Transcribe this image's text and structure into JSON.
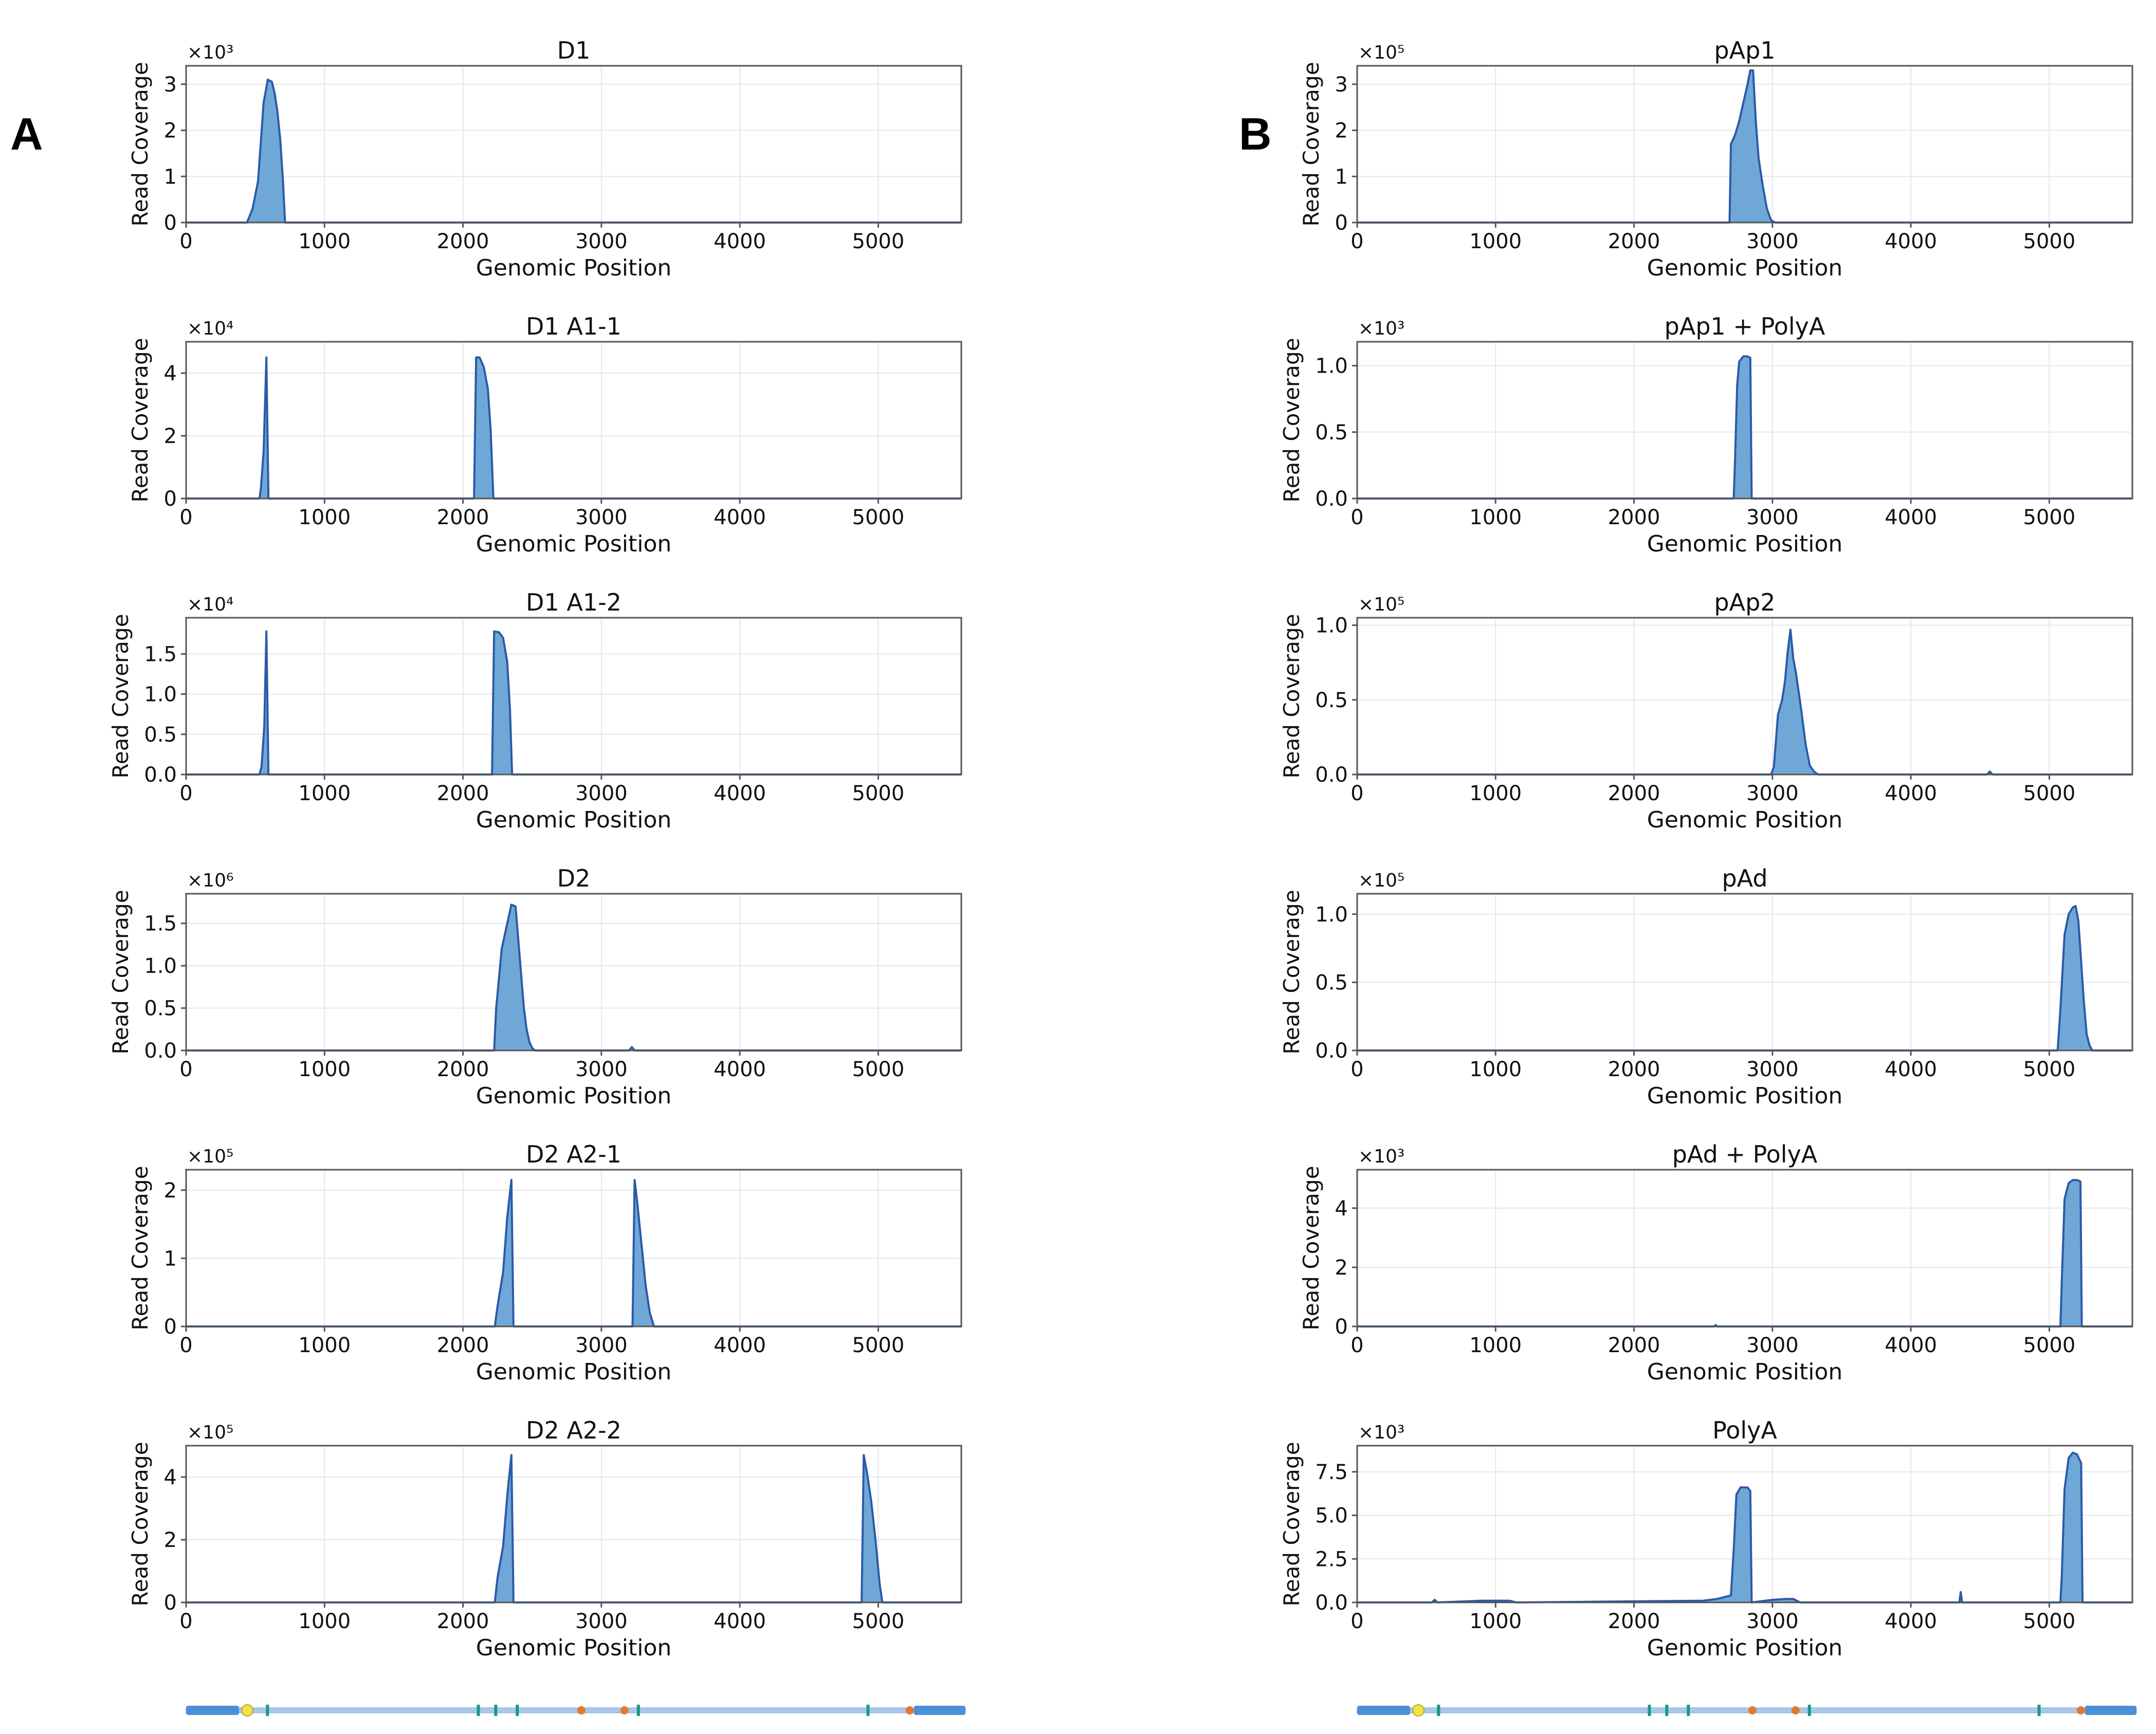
{
  "figure": {
    "panel_labels": [
      "A",
      "B"
    ],
    "colors": {
      "fill": "#6fa8d6",
      "stroke": "#2b5aa8",
      "grid": "#e6e6e6",
      "frame": "#555555"
    },
    "genome_map": {
      "x_range": [
        0,
        5600
      ],
      "yellow_markers": [
        440
      ],
      "green_ticks": [
        585,
        2100,
        2225,
        2380,
        3250,
        4900
      ],
      "orange_dots": [
        2840,
        3150,
        5200
      ],
      "colors": {
        "bar": "#4a90d9",
        "line": "#a9c7ea",
        "yellow": "#f2e24a",
        "green": "#1a9a7a",
        "orange": "#e07a2e"
      }
    }
  },
  "chart_data": [
    {
      "type": "area",
      "panel": "A",
      "title": "D1",
      "xlabel": "Genomic Position",
      "ylabel": "Read Coverage",
      "multiplier": "×10³",
      "xlim": [
        0,
        5600
      ],
      "ylim": [
        0,
        3.4
      ],
      "xticks": [
        0,
        1000,
        2000,
        3000,
        4000,
        5000
      ],
      "yticks": [
        0,
        1,
        2,
        3
      ],
      "ytick_labels": [
        "0",
        "1",
        "2",
        "3"
      ],
      "x": [
        0,
        440,
        480,
        520,
        560,
        590,
        620,
        640,
        660,
        680,
        700,
        715,
        5600
      ],
      "y": [
        0,
        0,
        0.3,
        0.9,
        2.6,
        3.1,
        3.05,
        2.8,
        2.4,
        1.8,
        0.9,
        0,
        0
      ]
    },
    {
      "type": "area",
      "panel": "A",
      "title": "D1 A1-1",
      "xlabel": "Genomic Position",
      "ylabel": "Read Coverage",
      "multiplier": "×10⁴",
      "xlim": [
        0,
        5600
      ],
      "ylim": [
        0,
        5.0
      ],
      "xticks": [
        0,
        1000,
        2000,
        3000,
        4000,
        5000
      ],
      "yticks": [
        0,
        2,
        4
      ],
      "ytick_labels": [
        "0",
        "2",
        "4"
      ],
      "x": [
        0,
        530,
        540,
        560,
        580,
        595,
        2080,
        2095,
        2120,
        2150,
        2180,
        2200,
        2220,
        5600
      ],
      "y": [
        0,
        0,
        0.3,
        1.5,
        4.5,
        0,
        0,
        4.5,
        4.5,
        4.2,
        3.5,
        2.2,
        0,
        0
      ]
    },
    {
      "type": "area",
      "panel": "A",
      "title": "D1 A1-2",
      "xlabel": "Genomic Position",
      "ylabel": "Read Coverage",
      "multiplier": "×10⁴",
      "xlim": [
        0,
        5600
      ],
      "ylim": [
        0,
        1.95
      ],
      "xticks": [
        0,
        1000,
        2000,
        3000,
        4000,
        5000
      ],
      "yticks": [
        0,
        0.5,
        1.0,
        1.5
      ],
      "ytick_labels": [
        "0.0",
        "0.5",
        "1.0",
        "1.5"
      ],
      "x": [
        0,
        530,
        545,
        565,
        580,
        595,
        2210,
        2225,
        2260,
        2290,
        2320,
        2340,
        2355,
        5600
      ],
      "y": [
        0,
        0,
        0.1,
        0.6,
        1.78,
        0,
        0,
        1.78,
        1.77,
        1.7,
        1.4,
        0.8,
        0,
        0
      ]
    },
    {
      "type": "area",
      "panel": "A",
      "title": "D2",
      "xlabel": "Genomic Position",
      "ylabel": "Read Coverage",
      "multiplier": "×10⁶",
      "xlim": [
        0,
        5600
      ],
      "ylim": [
        0,
        1.85
      ],
      "xticks": [
        0,
        1000,
        2000,
        3000,
        4000,
        5000
      ],
      "yticks": [
        0,
        0.5,
        1.0,
        1.5
      ],
      "ytick_labels": [
        "0.0",
        "0.5",
        "1.0",
        "1.5"
      ],
      "x": [
        0,
        2225,
        2240,
        2280,
        2320,
        2350,
        2380,
        2400,
        2420,
        2440,
        2460,
        2480,
        2500,
        2520,
        3200,
        3220,
        3240,
        5600
      ],
      "y": [
        0,
        0,
        0.5,
        1.2,
        1.5,
        1.72,
        1.7,
        1.3,
        0.9,
        0.5,
        0.25,
        0.1,
        0.03,
        0,
        0,
        0.04,
        0,
        0
      ]
    },
    {
      "type": "area",
      "panel": "A",
      "title": "D2 A2-1",
      "xlabel": "Genomic Position",
      "ylabel": "Read Coverage",
      "multiplier": "×10⁵",
      "xlim": [
        0,
        5600
      ],
      "ylim": [
        0,
        2.3
      ],
      "xticks": [
        0,
        1000,
        2000,
        3000,
        4000,
        5000
      ],
      "yticks": [
        0,
        1,
        2
      ],
      "ytick_labels": [
        "0",
        "1",
        "2"
      ],
      "x": [
        0,
        2230,
        2250,
        2290,
        2320,
        2350,
        2365,
        3225,
        3240,
        3260,
        3290,
        3320,
        3350,
        3380,
        5600
      ],
      "y": [
        0,
        0,
        0.3,
        0.8,
        1.6,
        2.15,
        0,
        0,
        2.15,
        1.8,
        1.2,
        0.6,
        0.2,
        0,
        0
      ]
    },
    {
      "type": "area",
      "panel": "A",
      "title": "D2 A2-2",
      "xlabel": "Genomic Position",
      "ylabel": "Read Coverage",
      "multiplier": "×10⁵",
      "xlim": [
        0,
        5600
      ],
      "ylim": [
        0,
        5.0
      ],
      "xticks": [
        0,
        1000,
        2000,
        3000,
        4000,
        5000
      ],
      "yticks": [
        0,
        2,
        4
      ],
      "ytick_labels": [
        "0",
        "2",
        "4"
      ],
      "x": [
        0,
        2230,
        2250,
        2290,
        2320,
        2350,
        2365,
        4880,
        4895,
        4920,
        4950,
        4980,
        5010,
        5030,
        5600
      ],
      "y": [
        0,
        0,
        0.8,
        1.8,
        3.4,
        4.7,
        0,
        0,
        4.7,
        4.1,
        3.2,
        2.0,
        0.6,
        0,
        0
      ]
    },
    {
      "type": "area",
      "panel": "B",
      "title": "pAp1",
      "xlabel": "Genomic Position",
      "ylabel": "Read Coverage",
      "multiplier": "×10⁵",
      "xlim": [
        0,
        5600
      ],
      "ylim": [
        0,
        3.4
      ],
      "xticks": [
        0,
        1000,
        2000,
        3000,
        4000,
        5000
      ],
      "yticks": [
        0,
        1,
        2,
        3
      ],
      "ytick_labels": [
        "0",
        "1",
        "2",
        "3"
      ],
      "x": [
        0,
        2690,
        2700,
        2730,
        2760,
        2790,
        2820,
        2840,
        2860,
        2880,
        2900,
        2930,
        2960,
        2990,
        3020,
        5600
      ],
      "y": [
        0,
        0,
        1.7,
        1.9,
        2.2,
        2.6,
        3.0,
        3.3,
        3.3,
        2.2,
        1.4,
        0.8,
        0.3,
        0.05,
        0,
        0
      ]
    },
    {
      "type": "area",
      "panel": "B",
      "title": "pAp1 + PolyA",
      "xlabel": "Genomic Position",
      "ylabel": "Read Coverage",
      "multiplier": "×10³",
      "xlim": [
        0,
        5600
      ],
      "ylim": [
        0,
        1.18
      ],
      "xticks": [
        0,
        1000,
        2000,
        3000,
        4000,
        5000
      ],
      "yticks": [
        0,
        0.5,
        1.0
      ],
      "ytick_labels": [
        "0.0",
        "0.5",
        "1.0"
      ],
      "x": [
        0,
        2720,
        2730,
        2745,
        2760,
        2790,
        2820,
        2840,
        2850,
        5600
      ],
      "y": [
        0,
        0,
        0.3,
        0.85,
        1.03,
        1.07,
        1.07,
        1.06,
        0,
        0
      ]
    },
    {
      "type": "area",
      "panel": "B",
      "title": "pAp2",
      "xlabel": "Genomic Position",
      "ylabel": "Read Coverage",
      "multiplier": "×10⁵",
      "xlim": [
        0,
        5600
      ],
      "ylim": [
        0,
        1.05
      ],
      "xticks": [
        0,
        1000,
        2000,
        3000,
        4000,
        5000
      ],
      "yticks": [
        0,
        0.5,
        1.0
      ],
      "ytick_labels": [
        "0.0",
        "0.5",
        "1.0"
      ],
      "x": [
        0,
        2990,
        3010,
        3040,
        3070,
        3090,
        3110,
        3130,
        3150,
        3170,
        3190,
        3210,
        3240,
        3270,
        3300,
        3330,
        4550,
        4570,
        4590,
        5600
      ],
      "y": [
        0,
        0,
        0.05,
        0.4,
        0.5,
        0.62,
        0.82,
        0.97,
        0.78,
        0.68,
        0.55,
        0.42,
        0.2,
        0.06,
        0.02,
        0,
        0,
        0.02,
        0,
        0
      ]
    },
    {
      "type": "area",
      "panel": "B",
      "title": "pAd",
      "xlabel": "Genomic Position",
      "ylabel": "Read Coverage",
      "multiplier": "×10⁵",
      "xlim": [
        0,
        5600
      ],
      "ylim": [
        0,
        1.15
      ],
      "xticks": [
        0,
        1000,
        2000,
        3000,
        4000,
        5000
      ],
      "yticks": [
        0,
        0.5,
        1.0
      ],
      "ytick_labels": [
        "0.0",
        "0.5",
        "1.0"
      ],
      "x": [
        0,
        5060,
        5080,
        5110,
        5140,
        5170,
        5190,
        5210,
        5230,
        5250,
        5270,
        5290,
        5310,
        5600
      ],
      "y": [
        0,
        0,
        0.3,
        0.85,
        1.0,
        1.05,
        1.06,
        0.95,
        0.65,
        0.35,
        0.12,
        0.04,
        0,
        0
      ]
    },
    {
      "type": "area",
      "panel": "B",
      "title": "pAd + PolyA",
      "xlabel": "Genomic Position",
      "ylabel": "Read Coverage",
      "multiplier": "×10³",
      "xlim": [
        0,
        5600
      ],
      "ylim": [
        0,
        5.3
      ],
      "xticks": [
        0,
        1000,
        2000,
        3000,
        4000,
        5000
      ],
      "yticks": [
        0,
        2,
        4
      ],
      "ytick_labels": [
        "0",
        "2",
        "4"
      ],
      "x": [
        0,
        2580,
        2590,
        2600,
        5080,
        5090,
        5110,
        5140,
        5170,
        5200,
        5225,
        5235,
        5600
      ],
      "y": [
        0,
        0,
        0.05,
        0,
        0,
        1.5,
        4.3,
        4.85,
        4.95,
        4.95,
        4.9,
        0,
        0
      ]
    },
    {
      "type": "area",
      "panel": "B",
      "title": "PolyA",
      "xlabel": "Genomic Position",
      "ylabel": "Read Coverage",
      "multiplier": "×10³",
      "xlim": [
        0,
        5600
      ],
      "ylim": [
        0,
        9.0
      ],
      "xticks": [
        0,
        1000,
        2000,
        3000,
        4000,
        5000
      ],
      "yticks": [
        0,
        2.5,
        5.0,
        7.5
      ],
      "ytick_labels": [
        "0.0",
        "2.5",
        "5.0",
        "7.5"
      ],
      "x": [
        0,
        540,
        560,
        580,
        900,
        1100,
        1150,
        2500,
        2600,
        2700,
        2720,
        2740,
        2770,
        2800,
        2820,
        2840,
        2850,
        3000,
        3100,
        3150,
        3200,
        4350,
        4360,
        4370,
        5080,
        5090,
        5110,
        5140,
        5170,
        5200,
        5230,
        5240,
        5600
      ],
      "y": [
        0,
        0,
        0.15,
        0,
        0.1,
        0.1,
        0,
        0.1,
        0.2,
        0.4,
        3.0,
        6.2,
        6.6,
        6.6,
        6.6,
        6.4,
        0,
        0.15,
        0.2,
        0.2,
        0,
        0,
        0.6,
        0,
        0,
        1.5,
        6.5,
        8.3,
        8.6,
        8.5,
        8.0,
        0,
        0
      ]
    }
  ]
}
